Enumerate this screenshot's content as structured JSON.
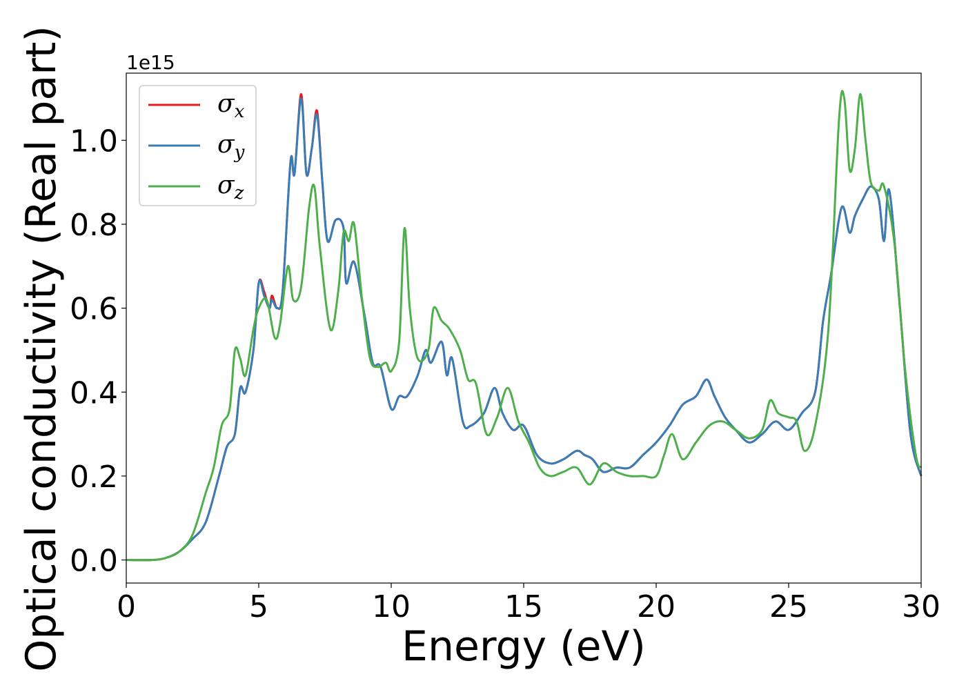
{
  "chart_data": {
    "type": "line",
    "xlabel": "Energy (eV)",
    "ylabel": "Optical conductivity (Real part)",
    "y_offset_label": "1e15",
    "xlim": [
      0,
      30
    ],
    "ylim": [
      -0.055,
      1.16
    ],
    "x_ticks": [
      0,
      5,
      10,
      15,
      20,
      25,
      30
    ],
    "x_tick_labels": [
      "0",
      "5",
      "10",
      "15",
      "20",
      "25",
      "30"
    ],
    "y_ticks": [
      0.0,
      0.2,
      0.4,
      0.6,
      0.8,
      1.0
    ],
    "y_tick_labels": [
      "0.0",
      "0.2",
      "0.4",
      "0.6",
      "0.8",
      "1.0"
    ],
    "grid": false,
    "legend_position": "top-left",
    "series": [
      {
        "name": "σx",
        "symbol": "σ",
        "subscript": "x",
        "color": "#e41a1c",
        "points": [
          [
            0,
            0
          ],
          [
            1,
            0
          ],
          [
            1.5,
            0.005
          ],
          [
            2,
            0.02
          ],
          [
            2.5,
            0.05
          ],
          [
            3,
            0.09
          ],
          [
            3.5,
            0.2
          ],
          [
            3.8,
            0.27
          ],
          [
            4.1,
            0.3
          ],
          [
            4.3,
            0.41
          ],
          [
            4.5,
            0.4
          ],
          [
            4.8,
            0.5
          ],
          [
            5.0,
            0.66
          ],
          [
            5.2,
            0.64
          ],
          [
            5.4,
            0.6
          ],
          [
            5.5,
            0.63
          ],
          [
            5.7,
            0.6
          ],
          [
            5.9,
            0.64
          ],
          [
            6.2,
            0.95
          ],
          [
            6.35,
            0.92
          ],
          [
            6.6,
            1.11
          ],
          [
            6.8,
            0.92
          ],
          [
            7.0,
            0.98
          ],
          [
            7.2,
            1.07
          ],
          [
            7.4,
            0.9
          ],
          [
            7.6,
            0.76
          ],
          [
            7.9,
            0.81
          ],
          [
            8.2,
            0.79
          ],
          [
            8.3,
            0.66
          ],
          [
            8.6,
            0.71
          ],
          [
            9.0,
            0.58
          ],
          [
            9.3,
            0.47
          ],
          [
            9.6,
            0.46
          ],
          [
            10.0,
            0.36
          ],
          [
            10.3,
            0.39
          ],
          [
            10.6,
            0.39
          ],
          [
            11.0,
            0.44
          ],
          [
            11.3,
            0.5
          ],
          [
            11.5,
            0.47
          ],
          [
            11.9,
            0.52
          ],
          [
            12.1,
            0.44
          ],
          [
            12.3,
            0.48
          ],
          [
            12.7,
            0.33
          ],
          [
            13.0,
            0.32
          ],
          [
            13.5,
            0.35
          ],
          [
            13.9,
            0.41
          ],
          [
            14.2,
            0.35
          ],
          [
            14.6,
            0.31
          ],
          [
            15.0,
            0.32
          ],
          [
            15.5,
            0.25
          ],
          [
            16.0,
            0.23
          ],
          [
            16.5,
            0.24
          ],
          [
            17.0,
            0.26
          ],
          [
            17.3,
            0.25
          ],
          [
            17.6,
            0.24
          ],
          [
            18.0,
            0.21
          ],
          [
            18.5,
            0.22
          ],
          [
            19.0,
            0.22
          ],
          [
            19.5,
            0.25
          ],
          [
            20.0,
            0.28
          ],
          [
            20.5,
            0.32
          ],
          [
            21.0,
            0.37
          ],
          [
            21.5,
            0.39
          ],
          [
            21.9,
            0.43
          ],
          [
            22.2,
            0.39
          ],
          [
            22.6,
            0.34
          ],
          [
            23.0,
            0.31
          ],
          [
            23.5,
            0.28
          ],
          [
            24.0,
            0.3
          ],
          [
            24.5,
            0.33
          ],
          [
            25.0,
            0.31
          ],
          [
            25.5,
            0.35
          ],
          [
            26.0,
            0.4
          ],
          [
            26.3,
            0.57
          ],
          [
            26.6,
            0.68
          ],
          [
            27.0,
            0.84
          ],
          [
            27.3,
            0.78
          ],
          [
            27.5,
            0.82
          ],
          [
            27.8,
            0.86
          ],
          [
            28.1,
            0.89
          ],
          [
            28.4,
            0.86
          ],
          [
            28.6,
            0.76
          ],
          [
            28.8,
            0.88
          ],
          [
            29.2,
            0.6
          ],
          [
            29.6,
            0.3
          ],
          [
            30,
            0.2
          ]
        ]
      },
      {
        "name": "σy",
        "symbol": "σ",
        "subscript": "y",
        "color": "#377eb8",
        "points": [
          [
            0,
            0
          ],
          [
            1,
            0
          ],
          [
            1.5,
            0.005
          ],
          [
            2,
            0.02
          ],
          [
            2.5,
            0.05
          ],
          [
            3,
            0.09
          ],
          [
            3.5,
            0.2
          ],
          [
            3.8,
            0.27
          ],
          [
            4.1,
            0.3
          ],
          [
            4.3,
            0.41
          ],
          [
            4.5,
            0.4
          ],
          [
            4.8,
            0.5
          ],
          [
            5.0,
            0.66
          ],
          [
            5.2,
            0.63
          ],
          [
            5.4,
            0.6
          ],
          [
            5.5,
            0.62
          ],
          [
            5.7,
            0.6
          ],
          [
            5.9,
            0.64
          ],
          [
            6.2,
            0.95
          ],
          [
            6.35,
            0.92
          ],
          [
            6.6,
            1.1
          ],
          [
            6.8,
            0.92
          ],
          [
            7.0,
            0.98
          ],
          [
            7.2,
            1.06
          ],
          [
            7.4,
            0.9
          ],
          [
            7.6,
            0.76
          ],
          [
            7.9,
            0.81
          ],
          [
            8.2,
            0.79
          ],
          [
            8.3,
            0.66
          ],
          [
            8.6,
            0.71
          ],
          [
            9.0,
            0.58
          ],
          [
            9.3,
            0.47
          ],
          [
            9.6,
            0.46
          ],
          [
            10.0,
            0.36
          ],
          [
            10.3,
            0.39
          ],
          [
            10.6,
            0.39
          ],
          [
            11.0,
            0.44
          ],
          [
            11.3,
            0.5
          ],
          [
            11.5,
            0.47
          ],
          [
            11.9,
            0.52
          ],
          [
            12.1,
            0.44
          ],
          [
            12.3,
            0.48
          ],
          [
            12.7,
            0.33
          ],
          [
            13.0,
            0.32
          ],
          [
            13.5,
            0.35
          ],
          [
            13.9,
            0.41
          ],
          [
            14.2,
            0.35
          ],
          [
            14.6,
            0.31
          ],
          [
            15.0,
            0.32
          ],
          [
            15.5,
            0.25
          ],
          [
            16.0,
            0.23
          ],
          [
            16.5,
            0.24
          ],
          [
            17.0,
            0.26
          ],
          [
            17.3,
            0.25
          ],
          [
            17.6,
            0.24
          ],
          [
            18.0,
            0.21
          ],
          [
            18.5,
            0.22
          ],
          [
            19.0,
            0.22
          ],
          [
            19.5,
            0.25
          ],
          [
            20.0,
            0.28
          ],
          [
            20.5,
            0.32
          ],
          [
            21.0,
            0.37
          ],
          [
            21.5,
            0.39
          ],
          [
            21.9,
            0.43
          ],
          [
            22.2,
            0.39
          ],
          [
            22.6,
            0.34
          ],
          [
            23.0,
            0.31
          ],
          [
            23.5,
            0.28
          ],
          [
            24.0,
            0.3
          ],
          [
            24.5,
            0.33
          ],
          [
            25.0,
            0.31
          ],
          [
            25.5,
            0.35
          ],
          [
            26.0,
            0.4
          ],
          [
            26.3,
            0.57
          ],
          [
            26.6,
            0.68
          ],
          [
            27.0,
            0.84
          ],
          [
            27.3,
            0.78
          ],
          [
            27.5,
            0.82
          ],
          [
            27.8,
            0.86
          ],
          [
            28.1,
            0.89
          ],
          [
            28.4,
            0.86
          ],
          [
            28.6,
            0.76
          ],
          [
            28.8,
            0.88
          ],
          [
            29.2,
            0.6
          ],
          [
            29.6,
            0.3
          ],
          [
            30,
            0.2
          ]
        ]
      },
      {
        "name": "σz",
        "symbol": "σ",
        "subscript": "z",
        "color": "#4daf4a",
        "points": [
          [
            0,
            0
          ],
          [
            1,
            0
          ],
          [
            1.5,
            0.005
          ],
          [
            2,
            0.02
          ],
          [
            2.5,
            0.06
          ],
          [
            3,
            0.16
          ],
          [
            3.3,
            0.22
          ],
          [
            3.6,
            0.32
          ],
          [
            3.9,
            0.36
          ],
          [
            4.1,
            0.5
          ],
          [
            4.3,
            0.48
          ],
          [
            4.5,
            0.44
          ],
          [
            4.8,
            0.55
          ],
          [
            5.0,
            0.6
          ],
          [
            5.3,
            0.62
          ],
          [
            5.6,
            0.53
          ],
          [
            5.8,
            0.56
          ],
          [
            6.1,
            0.7
          ],
          [
            6.3,
            0.62
          ],
          [
            6.6,
            0.65
          ],
          [
            6.9,
            0.84
          ],
          [
            7.1,
            0.89
          ],
          [
            7.3,
            0.75
          ],
          [
            7.7,
            0.55
          ],
          [
            8.0,
            0.64
          ],
          [
            8.2,
            0.78
          ],
          [
            8.4,
            0.76
          ],
          [
            8.6,
            0.8
          ],
          [
            8.9,
            0.62
          ],
          [
            9.2,
            0.48
          ],
          [
            9.5,
            0.46
          ],
          [
            9.8,
            0.47
          ],
          [
            10.0,
            0.45
          ],
          [
            10.3,
            0.52
          ],
          [
            10.5,
            0.79
          ],
          [
            10.7,
            0.6
          ],
          [
            11.0,
            0.48
          ],
          [
            11.4,
            0.5
          ],
          [
            11.6,
            0.6
          ],
          [
            11.9,
            0.57
          ],
          [
            12.2,
            0.55
          ],
          [
            12.6,
            0.5
          ],
          [
            12.9,
            0.43
          ],
          [
            13.2,
            0.42
          ],
          [
            13.6,
            0.3
          ],
          [
            14.0,
            0.34
          ],
          [
            14.4,
            0.41
          ],
          [
            14.8,
            0.33
          ],
          [
            15.2,
            0.28
          ],
          [
            15.6,
            0.22
          ],
          [
            16.0,
            0.2
          ],
          [
            16.5,
            0.21
          ],
          [
            17.0,
            0.22
          ],
          [
            17.5,
            0.18
          ],
          [
            18.0,
            0.23
          ],
          [
            18.5,
            0.21
          ],
          [
            19.0,
            0.2
          ],
          [
            19.5,
            0.2
          ],
          [
            20.0,
            0.2
          ],
          [
            20.3,
            0.25
          ],
          [
            20.6,
            0.3
          ],
          [
            21.0,
            0.24
          ],
          [
            21.5,
            0.28
          ],
          [
            22.0,
            0.32
          ],
          [
            22.5,
            0.33
          ],
          [
            23.0,
            0.31
          ],
          [
            23.5,
            0.29
          ],
          [
            24.0,
            0.31
          ],
          [
            24.3,
            0.38
          ],
          [
            24.6,
            0.35
          ],
          [
            25.0,
            0.34
          ],
          [
            25.3,
            0.33
          ],
          [
            25.6,
            0.26
          ],
          [
            26.0,
            0.32
          ],
          [
            26.5,
            0.55
          ],
          [
            26.9,
            1.05
          ],
          [
            27.1,
            1.1
          ],
          [
            27.3,
            0.93
          ],
          [
            27.5,
            0.98
          ],
          [
            27.7,
            1.11
          ],
          [
            27.9,
            1.0
          ],
          [
            28.1,
            0.9
          ],
          [
            28.4,
            0.88
          ],
          [
            28.6,
            0.89
          ],
          [
            29.0,
            0.75
          ],
          [
            29.4,
            0.45
          ],
          [
            29.8,
            0.25
          ],
          [
            30,
            0.22
          ]
        ]
      }
    ]
  }
}
